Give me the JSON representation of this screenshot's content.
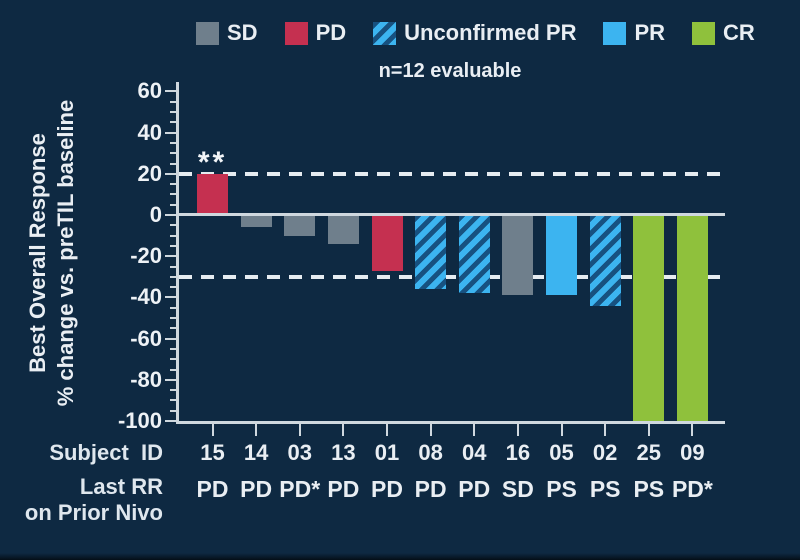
{
  "background": "#0e2942",
  "subtitle": "n=12 evaluable",
  "legend": {
    "items": [
      {
        "label": "SD",
        "color": "#6f7f8c",
        "hatched": false
      },
      {
        "label": "PD",
        "color": "#c53050",
        "hatched": false
      },
      {
        "label": "Unconfirmed PR",
        "color": "#3cb4f0",
        "hatched": true
      },
      {
        "label": "PR",
        "color": "#3cb4f0",
        "hatched": false
      },
      {
        "label": "CR",
        "color": "#8fc13c",
        "hatched": false
      }
    ]
  },
  "chart_data": {
    "type": "bar",
    "title": "n=12 evaluable",
    "ylabel_line1": "Best Overall Response",
    "ylabel_line2": "% change vs. preTIL baseline",
    "ylim": [
      -100,
      65
    ],
    "yticks_major": [
      60,
      40,
      20,
      0,
      -20,
      -40,
      -60,
      -80,
      -100
    ],
    "ytick_minor_step": 5,
    "reference_lines": [
      20,
      -30
    ],
    "grid": false,
    "legend_position": "top",
    "categories": [
      "15",
      "14",
      "03",
      "13",
      "01",
      "08",
      "04",
      "16",
      "05",
      "02",
      "25",
      "09"
    ],
    "values": [
      20,
      -6,
      -10,
      -14,
      -27,
      -36,
      -38,
      -39,
      -39,
      -44,
      -100,
      -100
    ],
    "response_types": [
      "PD",
      "SD",
      "SD",
      "SD",
      "PD",
      "uPR",
      "uPR",
      "SD",
      "PR",
      "uPR",
      "CR",
      "CR"
    ],
    "last_rr": [
      "PD",
      "PD",
      "PD*",
      "PD",
      "PD",
      "PD",
      "PD",
      "SD",
      "PS",
      "PS",
      "PS",
      "PD*"
    ],
    "annotations": [
      {
        "bar_index": 0,
        "text": "**"
      }
    ],
    "x_row_label": "Subject  ID",
    "rr_row_label_line1": "Last RR",
    "rr_row_label_line2": "on Prior Nivo"
  },
  "colors": {
    "SD": "#6f7f8c",
    "PD": "#c53050",
    "PR": "#3cb4f0",
    "CR": "#8fc13c",
    "uPR_base": "#3cb4f0",
    "uPR_stripe": "#175180",
    "axis": "#cfd8df",
    "text": "#e9eef3"
  }
}
